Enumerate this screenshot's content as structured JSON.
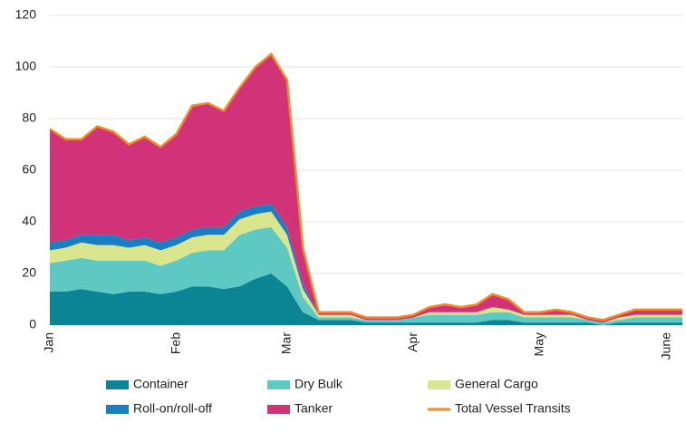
{
  "chart_data": {
    "type": "stacked_area",
    "categories": [
      "Jan",
      null,
      null,
      null,
      null,
      null,
      null,
      null,
      "Feb",
      null,
      null,
      null,
      null,
      null,
      null,
      "Mar",
      null,
      null,
      null,
      null,
      null,
      null,
      null,
      "Apr",
      null,
      null,
      null,
      null,
      null,
      null,
      null,
      "May",
      null,
      null,
      null,
      null,
      null,
      null,
      null,
      "June",
      null
    ],
    "series": [
      {
        "name": "Container",
        "color": "#0b8593",
        "values": [
          13,
          13,
          14,
          13,
          12,
          13,
          13,
          12,
          13,
          15,
          15,
          14,
          15,
          18,
          20,
          15,
          5,
          2,
          2,
          2,
          1,
          1,
          1,
          1,
          1,
          1,
          1,
          1,
          2,
          2,
          1,
          1,
          1,
          1,
          1,
          0,
          1,
          1,
          1,
          1,
          1
        ]
      },
      {
        "name": "Dry Bulk",
        "color": "#5ec8c3",
        "values": [
          11,
          12,
          12,
          12,
          13,
          12,
          12,
          11,
          12,
          13,
          14,
          15,
          20,
          19,
          18,
          15,
          6,
          1,
          1,
          1,
          1,
          1,
          1,
          2,
          3,
          3,
          3,
          3,
          3,
          3,
          2,
          2,
          2,
          2,
          1,
          1,
          1,
          2,
          2,
          2,
          2
        ]
      },
      {
        "name": "General Cargo",
        "color": "#d9e68e",
        "values": [
          5,
          5,
          6,
          6,
          6,
          5,
          6,
          6,
          6,
          6,
          6,
          6,
          6,
          6,
          6,
          5,
          3,
          1,
          1,
          1,
          0,
          0,
          0,
          0,
          1,
          1,
          1,
          1,
          2,
          1,
          1,
          1,
          1,
          1,
          0,
          0,
          1,
          1,
          1,
          1,
          1
        ]
      },
      {
        "name": "Roll-on/roll-off",
        "color": "#1a7ec2",
        "values": [
          3,
          3,
          3,
          4,
          4,
          3,
          3,
          3,
          3,
          3,
          3,
          3,
          3,
          3,
          3,
          3,
          2,
          0,
          0,
          0,
          0,
          0,
          0,
          0,
          0,
          0,
          0,
          0,
          0,
          0,
          0,
          0,
          0,
          0,
          0,
          0,
          0,
          0,
          0,
          0,
          0
        ]
      },
      {
        "name": "Tanker",
        "color": "#d23278",
        "values": [
          44,
          39,
          37,
          42,
          40,
          37,
          39,
          37,
          40,
          48,
          48,
          45,
          48,
          54,
          58,
          57,
          14,
          1,
          1,
          1,
          1,
          1,
          1,
          1,
          2,
          3,
          2,
          3,
          5,
          4,
          1,
          1,
          2,
          1,
          1,
          1,
          1,
          2,
          2,
          2,
          2
        ]
      }
    ],
    "total": {
      "name": "Total Vessel Transits",
      "color": "#f28a23",
      "values": [
        76,
        72,
        72,
        77,
        75,
        70,
        73,
        69,
        74,
        85,
        86,
        83,
        92,
        100,
        105,
        95,
        30,
        5,
        5,
        5,
        3,
        3,
        3,
        4,
        7,
        8,
        7,
        8,
        12,
        10,
        5,
        5,
        6,
        5,
        3,
        2,
        4,
        6,
        6,
        6,
        6
      ]
    },
    "ylim": [
      0,
      120
    ],
    "yticks": [
      0,
      20,
      40,
      60,
      80,
      100,
      120
    ],
    "grid": true
  }
}
